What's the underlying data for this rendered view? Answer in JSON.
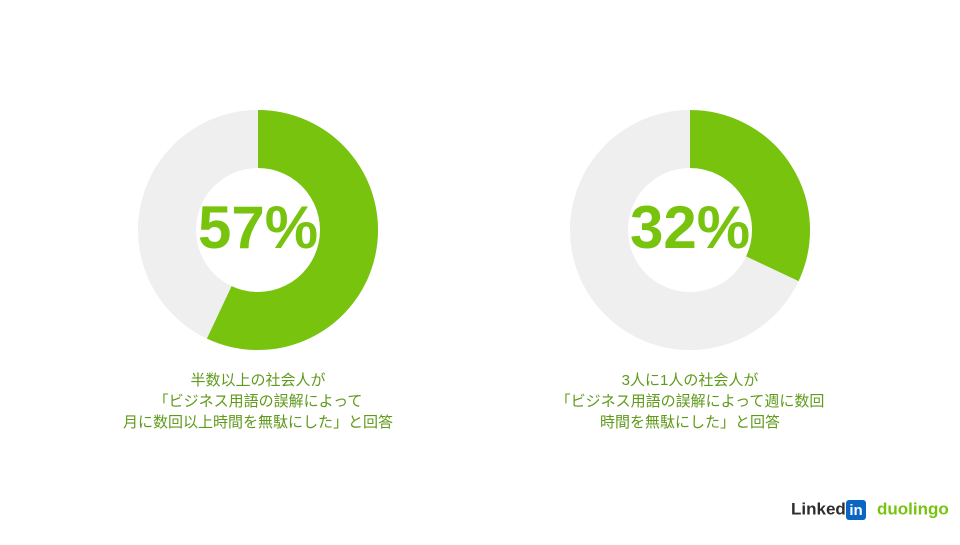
{
  "chart_data": [
    {
      "type": "donut",
      "values": [
        57
      ],
      "value_labels": [
        "57%"
      ],
      "color": "#77c30e",
      "track_color": "#efefef",
      "caption": [
        "半数以上の社会人が",
        "「ビジネス用語の誤解によって",
        "月に数回以上時間を無駄にした」と回答"
      ]
    },
    {
      "type": "donut",
      "values": [
        32
      ],
      "value_labels": [
        "32%"
      ],
      "color": "#77c30e",
      "track_color": "#efefef",
      "caption": [
        "3人に1人の社会人が",
        "「ビジネス用語の誤解によって週に数回",
        "時間を無駄にした」と回答"
      ]
    }
  ],
  "logos": {
    "linkedin": "Linked",
    "linkedin_box": "in",
    "duolingo": "duolingo"
  }
}
